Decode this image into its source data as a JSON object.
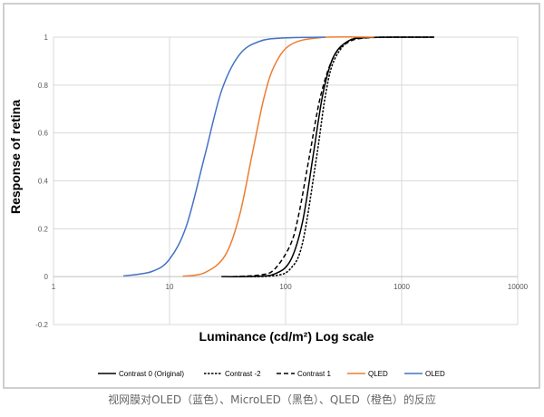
{
  "caption": "视网膜对OLED（蓝色）、MicroLED（黑色）、QLED（橙色）的反应",
  "chart_data": {
    "type": "line",
    "title": "",
    "xlabel": "Luminance (cd/m²) Log scale",
    "ylabel": "Response of retina",
    "xscale": "log",
    "xlim": [
      1,
      10000
    ],
    "ylim": [
      -0.2,
      1
    ],
    "x_ticks": [
      "1",
      "10",
      "100",
      "1000",
      "10000"
    ],
    "y_ticks": [
      "-0.2",
      "0",
      "0.2",
      "0.4",
      "0.6",
      "0.8",
      "1"
    ],
    "grid": true,
    "legend": "bottom",
    "series": [
      {
        "name": "Contrast 0 (Original)",
        "color": "#000000",
        "dash": "solid",
        "x": [
          28,
          50,
          80,
          110,
          140,
          172,
          210,
          260,
          350,
          500,
          1000,
          1900
        ],
        "y": [
          0.0,
          0.001,
          0.011,
          0.067,
          0.229,
          0.5,
          0.765,
          0.92,
          0.985,
          0.998,
          1.0,
          1.0
        ]
      },
      {
        "name": "Contrast -2",
        "color": "#000000",
        "dash": "short",
        "x": [
          40,
          80,
          110,
          140,
          185,
          220,
          260,
          350,
          500,
          1000,
          1900
        ],
        "y": [
          0.0,
          0.004,
          0.033,
          0.141,
          0.5,
          0.755,
          0.9,
          0.984,
          0.998,
          1.0,
          1.0
        ]
      },
      {
        "name": "Contrast 1",
        "color": "#000000",
        "dash": "long",
        "x": [
          35,
          60,
          80,
          110,
          130,
          160,
          200,
          260,
          350,
          500,
          1000,
          1900
        ],
        "y": [
          0.0,
          0.007,
          0.03,
          0.133,
          0.261,
          0.5,
          0.753,
          0.919,
          0.98,
          0.997,
          1.0,
          1.0
        ]
      },
      {
        "name": "QLED",
        "color": "#ED7D31",
        "dash": "solid",
        "x": [
          13,
          20,
          30,
          40,
          51,
          65,
          80,
          110,
          200,
          580
        ],
        "y": [
          0.002,
          0.016,
          0.087,
          0.254,
          0.5,
          0.745,
          0.88,
          0.968,
          0.998,
          1.0
        ]
      },
      {
        "name": "OLED",
        "color": "#4472C4",
        "dash": "solid",
        "x": [
          4,
          7,
          10,
          14,
          20,
          28,
          40,
          60,
          100,
          220
        ],
        "y": [
          0.003,
          0.021,
          0.073,
          0.213,
          0.5,
          0.775,
          0.927,
          0.983,
          0.997,
          1.0
        ]
      }
    ]
  }
}
